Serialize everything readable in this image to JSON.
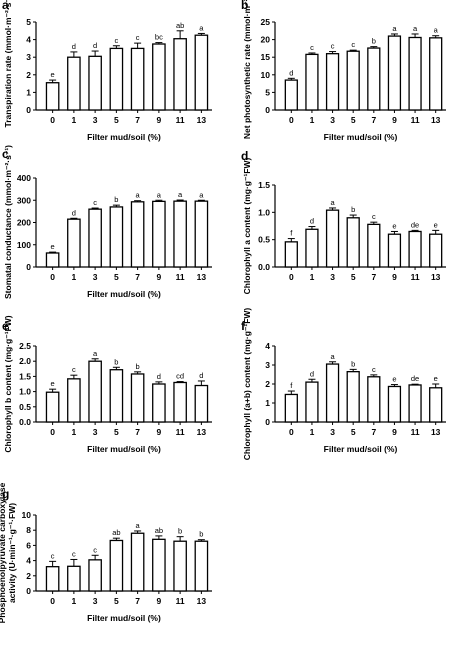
{
  "chart_data": [
    {
      "panel": "a",
      "type": "bar",
      "categories": [
        "0",
        "1",
        "3",
        "5",
        "7",
        "9",
        "11",
        "13"
      ],
      "values": [
        1.55,
        3.0,
        3.05,
        3.5,
        3.5,
        3.75,
        4.05,
        4.25
      ],
      "errors": [
        0.15,
        0.3,
        0.3,
        0.15,
        0.3,
        0.08,
        0.45,
        0.1
      ],
      "letters": [
        "e",
        "d",
        "d",
        "c",
        "c",
        "bc",
        "ab",
        "a"
      ],
      "xlabel": "Filter mud/soil (%)",
      "ylabel": "Transpiration rate (mmol·m⁻²·s⁻¹)",
      "ylim": [
        0,
        5
      ],
      "yticks": [
        "0",
        "1",
        "2",
        "3",
        "4",
        "5"
      ]
    },
    {
      "panel": "b",
      "type": "bar",
      "categories": [
        "0",
        "1",
        "3",
        "5",
        "7",
        "9",
        "11",
        "13"
      ],
      "values": [
        8.5,
        15.8,
        16.0,
        16.7,
        17.6,
        21.0,
        20.6,
        20.5
      ],
      "errors": [
        0.5,
        0.4,
        0.6,
        0.3,
        0.4,
        0.6,
        1.0,
        0.6
      ],
      "letters": [
        "d",
        "c",
        "c",
        "c",
        "b",
        "a",
        "a",
        "a"
      ],
      "xlabel": "Filter mud/soil (%)",
      "ylabel": "Net photosynthetic rate (mmol·m⁻²·s⁻¹)",
      "ylim": [
        0,
        25
      ],
      "yticks": [
        "0",
        "5",
        "10",
        "15",
        "20",
        "25"
      ]
    },
    {
      "panel": "c",
      "type": "bar",
      "categories": [
        "0",
        "1",
        "3",
        "5",
        "7",
        "9",
        "11",
        "13"
      ],
      "values": [
        63,
        215,
        260,
        270,
        293,
        295,
        296,
        296
      ],
      "errors": [
        4,
        4,
        5,
        8,
        5,
        5,
        5,
        4
      ],
      "letters": [
        "e",
        "d",
        "c",
        "b",
        "a",
        "a",
        "a",
        "a"
      ],
      "xlabel": "Filter mud/soil (%)",
      "ylabel": "Stomatal conductance (mmol·m⁻²·s⁻¹)",
      "ylim": [
        0,
        400
      ],
      "yticks": [
        "0",
        "100",
        "200",
        "300",
        "400"
      ]
    },
    {
      "panel": "d",
      "type": "bar",
      "categories": [
        "0",
        "1",
        "3",
        "5",
        "7",
        "9",
        "11",
        "13"
      ],
      "values": [
        0.46,
        0.69,
        1.04,
        0.9,
        0.78,
        0.6,
        0.65,
        0.6
      ],
      "errors": [
        0.06,
        0.05,
        0.04,
        0.05,
        0.04,
        0.05,
        0.02,
        0.07
      ],
      "letters": [
        "f",
        "d",
        "a",
        "b",
        "c",
        "e",
        "de",
        "e"
      ],
      "xlabel": "",
      "ylabel": "Chlorophyll a content (mg·g⁻¹FW)",
      "ylim": [
        0,
        1.5
      ],
      "yticks": [
        "0.0",
        "0.5",
        "1.0",
        "1.5"
      ]
    },
    {
      "panel": "e",
      "type": "bar",
      "categories": [
        "0",
        "1",
        "3",
        "5",
        "7",
        "9",
        "11",
        "13"
      ],
      "values": [
        0.98,
        1.42,
        2.0,
        1.72,
        1.58,
        1.25,
        1.3,
        1.2
      ],
      "errors": [
        0.1,
        0.12,
        0.08,
        0.08,
        0.07,
        0.07,
        0.03,
        0.15
      ],
      "letters": [
        "e",
        "c",
        "a",
        "b",
        "b",
        "d",
        "cd",
        "d"
      ],
      "xlabel": "Filter mud/soil (%)",
      "ylabel": "Chlorophyll b content (mg·g⁻¹FW)",
      "ylim": [
        0,
        2.5
      ],
      "yticks": [
        "0.0",
        "0.5",
        "1.0",
        "1.5",
        "2.0",
        "2.5"
      ]
    },
    {
      "panel": "f",
      "type": "bar",
      "categories": [
        "0",
        "1",
        "3",
        "5",
        "7",
        "9",
        "11",
        "13"
      ],
      "values": [
        1.45,
        2.1,
        3.05,
        2.65,
        2.38,
        1.87,
        1.95,
        1.8
      ],
      "errors": [
        0.18,
        0.15,
        0.12,
        0.12,
        0.1,
        0.1,
        0.04,
        0.2
      ],
      "letters": [
        "f",
        "d",
        "a",
        "b",
        "c",
        "e",
        "de",
        "e"
      ],
      "xlabel": "Filter mud/soil (%)",
      "ylabel": "Chlorophyll (a+b) content (mg·g⁻¹FW)",
      "ylim": [
        0,
        4
      ],
      "yticks": [
        "0",
        "1",
        "2",
        "3",
        "4"
      ]
    },
    {
      "panel": "g",
      "type": "bar",
      "categories": [
        "0",
        "1",
        "3",
        "5",
        "7",
        "9",
        "11",
        "13"
      ],
      "values": [
        3.2,
        3.25,
        4.1,
        6.65,
        7.6,
        6.8,
        6.55,
        6.55
      ],
      "errors": [
        0.7,
        0.9,
        0.6,
        0.3,
        0.3,
        0.45,
        0.6,
        0.2
      ],
      "letters": [
        "c",
        "c",
        "c",
        "ab",
        "a",
        "ab",
        "b",
        "b"
      ],
      "xlabel": "Filter mud/soil (%)",
      "ylabel": "Phosphoenolpyruvate carboxylase activity (U·min⁻¹·g⁻¹·FW)",
      "ylim": [
        0,
        10
      ],
      "yticks": [
        "0",
        "2",
        "4",
        "6",
        "8",
        "10"
      ]
    }
  ]
}
